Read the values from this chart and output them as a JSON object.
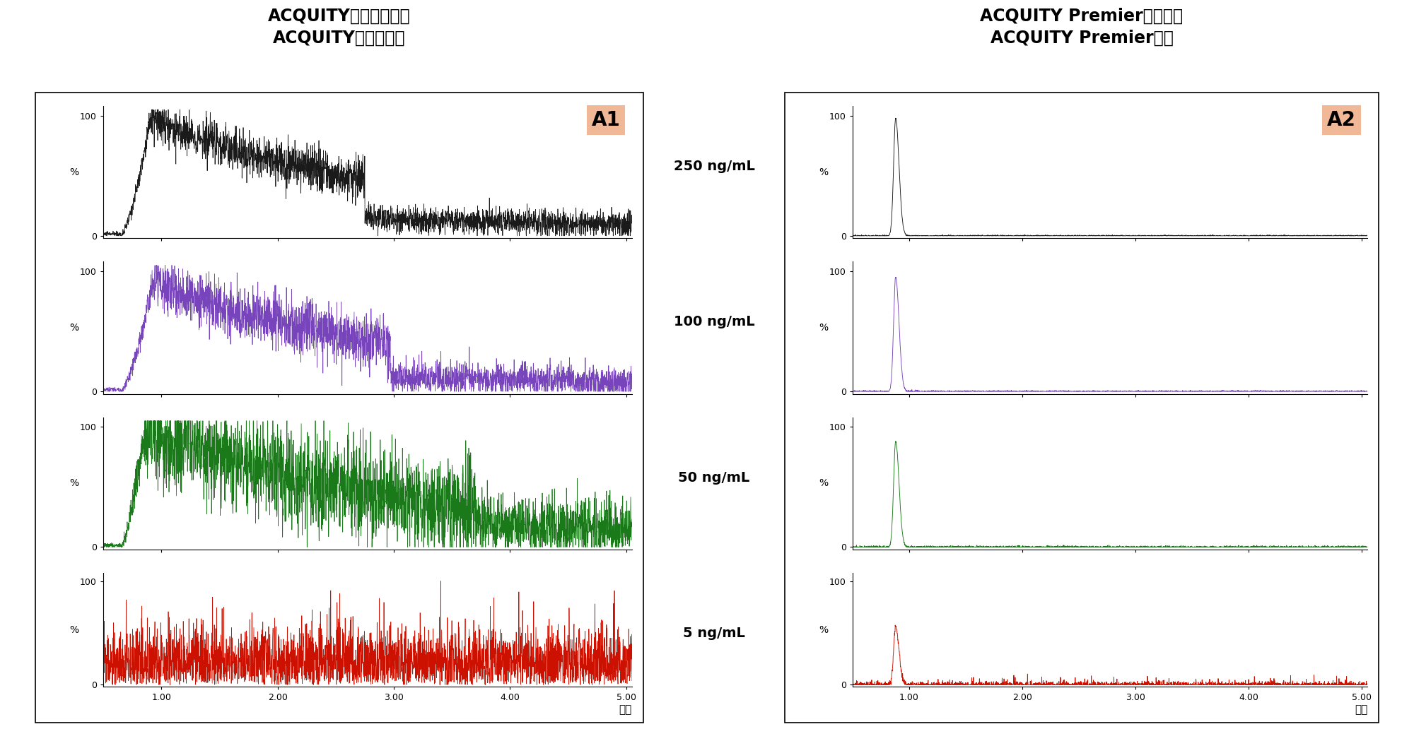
{
  "left_title_line1": "ACQUITY标准色谱柱和",
  "left_title_line2": "ACQUITY不锈锃系统",
  "right_title_line1": "ACQUITY Premier色谱柱和",
  "right_title_line2": "ACQUITY Premier系统",
  "label_A1": "A1",
  "label_A2": "A2",
  "concentrations": [
    "250 ng/mL",
    "100 ng/mL",
    "50 ng/mL",
    "5 ng/mL"
  ],
  "colors": [
    "#1a1a1a",
    "#7744bb",
    "#1a7a1a",
    "#cc1100"
  ],
  "xmin": 0.5,
  "xmax": 5.05,
  "xticks": [
    1.0,
    2.0,
    3.0,
    4.0,
    5.0
  ],
  "xticklabels": [
    "1.00",
    "2.00",
    "3.00",
    "4.00",
    "5.00"
  ],
  "ylabel": "%",
  "xlabel_last": "时间",
  "ymin": 0,
  "ymax": 100,
  "yticks_labels": [
    "0",
    "100"
  ],
  "background_color": "#ffffff",
  "box_color": "#f0b896",
  "title_fontsize": 17,
  "tick_fontsize": 9,
  "conc_fontsize": 14
}
